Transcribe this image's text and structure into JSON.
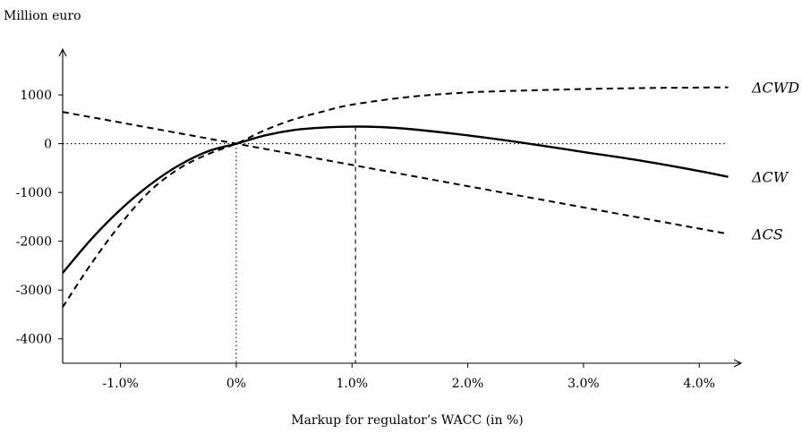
{
  "chart_data": {
    "type": "line",
    "ylabel": "Million euro",
    "xlabel": "Markup for regulator’s WACC (in %)",
    "xlim": [
      -1.5,
      4.3
    ],
    "ylim": [
      -4500,
      1900
    ],
    "x_ticks": [
      -1.0,
      0.0,
      1.0,
      2.0,
      3.0,
      4.0
    ],
    "x_tick_labels": [
      "-1.0%",
      "0%",
      "1.0%",
      "2.0%",
      "3.0%",
      "4.0%"
    ],
    "y_ticks": [
      1000,
      0,
      -1000,
      -2000,
      -3000,
      -4000
    ],
    "y_tick_labels": [
      "1000",
      "0",
      "-1000",
      "-2000",
      "-3000",
      "-4000"
    ],
    "reference_lines": [
      {
        "orientation": "horizontal",
        "value": 0,
        "style": "dotted"
      },
      {
        "orientation": "vertical",
        "value": 0,
        "style": "dotted"
      },
      {
        "orientation": "vertical",
        "value": 1.03,
        "style": "dashed"
      }
    ],
    "series": [
      {
        "name": "ΔCWD",
        "style": "dashed",
        "x": [
          -1.5,
          -1.25,
          -1.0,
          -0.75,
          -0.5,
          -0.25,
          0.0,
          0.25,
          0.5,
          0.75,
          1.0,
          1.5,
          2.0,
          2.5,
          3.0,
          3.5,
          4.0,
          4.25
        ],
        "y": [
          -3350,
          -2450,
          -1650,
          -980,
          -520,
          -220,
          0,
          280,
          500,
          660,
          800,
          960,
          1050,
          1090,
          1120,
          1140,
          1150,
          1155
        ]
      },
      {
        "name": "ΔCW",
        "style": "solid",
        "x": [
          -1.5,
          -1.25,
          -1.0,
          -0.75,
          -0.5,
          -0.25,
          0.0,
          0.25,
          0.5,
          0.75,
          1.0,
          1.25,
          1.5,
          2.0,
          2.5,
          3.0,
          3.5,
          4.0,
          4.25
        ],
        "y": [
          -2650,
          -1950,
          -1350,
          -850,
          -450,
          -160,
          0,
          170,
          280,
          330,
          350,
          340,
          300,
          170,
          10,
          -170,
          -350,
          -560,
          -680
        ]
      },
      {
        "name": "ΔCS",
        "style": "dashed",
        "x": [
          -1.5,
          0.0,
          4.25
        ],
        "y": [
          650,
          0,
          -1850
        ]
      }
    ]
  }
}
